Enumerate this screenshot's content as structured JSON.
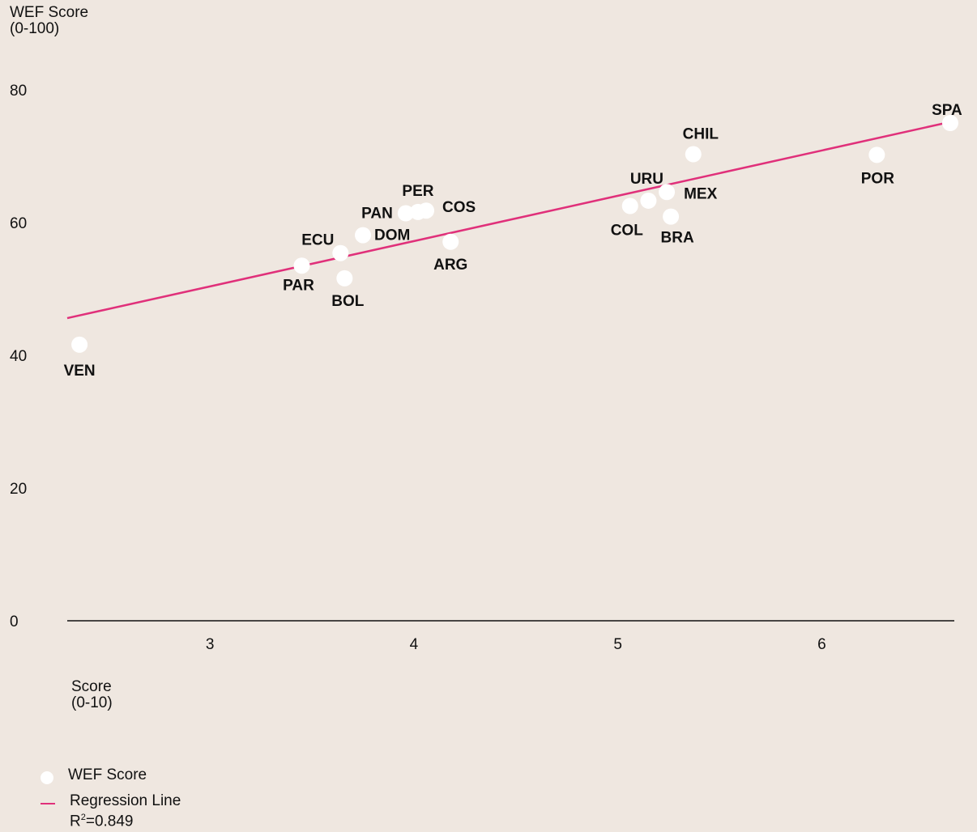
{
  "chart_data": {
    "type": "scatter",
    "title": "",
    "ylabel": "WEF Score\n(0-100)",
    "xlabel": "Score\n(0-10)",
    "xlim": [
      2.3,
      6.65
    ],
    "ylim": [
      0,
      80
    ],
    "x_ticks": [
      3,
      4,
      5,
      6
    ],
    "y_ticks": [
      0,
      20,
      40,
      60,
      80
    ],
    "grid": false,
    "legend_position": "bottom-left",
    "series": [
      {
        "name": "WEF Score",
        "color": "#ffffff",
        "points": [
          {
            "label": "VEN",
            "x": 2.36,
            "y": 41.6
          },
          {
            "label": "PAR",
            "x": 3.45,
            "y": 53.5
          },
          {
            "label": "ECU",
            "x": 3.64,
            "y": 55.4
          },
          {
            "label": "BOL",
            "x": 3.66,
            "y": 51.6
          },
          {
            "label": "DOM",
            "x": 3.75,
            "y": 58.1
          },
          {
            "label": "PAN",
            "x": 3.96,
            "y": 61.4
          },
          {
            "label": "PER",
            "x": 4.02,
            "y": 61.6
          },
          {
            "label": "COS",
            "x": 4.06,
            "y": 61.8
          },
          {
            "label": "ARG",
            "x": 4.18,
            "y": 57.1
          },
          {
            "label": "COL",
            "x": 5.06,
            "y": 62.5
          },
          {
            "label": "URU",
            "x": 5.15,
            "y": 63.3
          },
          {
            "label": "MEX",
            "x": 5.24,
            "y": 64.6
          },
          {
            "label": "BRA",
            "x": 5.26,
            "y": 60.9
          },
          {
            "label": "CHIL",
            "x": 5.37,
            "y": 70.3
          },
          {
            "label": "POR",
            "x": 6.27,
            "y": 70.2
          },
          {
            "label": "SPA",
            "x": 6.63,
            "y": 75.0
          }
        ]
      },
      {
        "name": "Regression Line",
        "color": "#e0307a",
        "line": {
          "x": [
            2.3,
            6.65
          ],
          "y": [
            45.6,
            75.3
          ]
        }
      }
    ],
    "legend": [
      {
        "label": "WEF Score",
        "marker": "dot"
      },
      {
        "label": "Regression Line",
        "marker": "line",
        "note_base": "R",
        "note_sup": "2",
        "note_rest": "=0.849"
      }
    ]
  }
}
